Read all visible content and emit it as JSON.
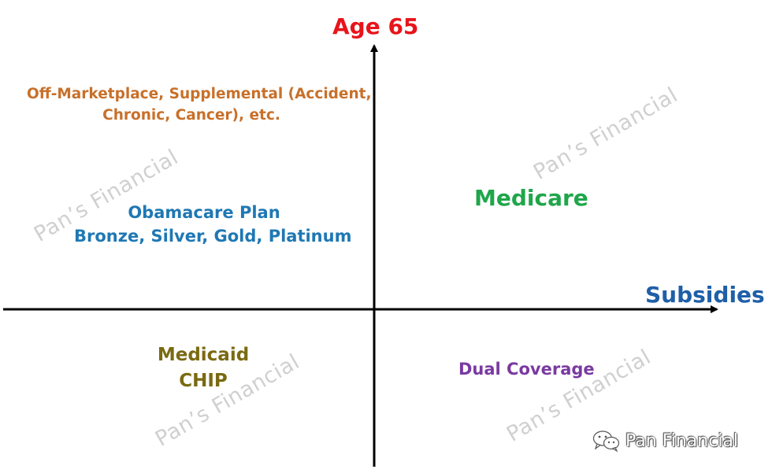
{
  "axes": {
    "y_label": "Age 65",
    "x_label": "Subsidies"
  },
  "quadrants": {
    "top_left_upper": {
      "line1": "Off-Marketplace, Supplemental (Accident,",
      "line2": "Chronic, Cancer), etc."
    },
    "top_left_lower": {
      "line1": "Obamacare Plan",
      "line2": "Bronze, Silver, Gold, Platinum"
    },
    "top_right": {
      "label": "Medicare"
    },
    "bottom_left": {
      "line1": "Medicaid",
      "line2": "CHIP"
    },
    "bottom_right": {
      "label": "Dual Coverage"
    }
  },
  "watermarks": [
    "Pan’s Financial",
    "Pan’s Financial",
    "Pan’s Financial",
    "Pan’s Financial"
  ],
  "brand": {
    "text": "Pan Financial",
    "icon": "wechat-icon"
  },
  "colors": {
    "axis": "#000000",
    "y_label": "#e8141b",
    "x_label": "#1f5fa8",
    "supplemental": "#c8702a",
    "obamacare": "#1f78b4",
    "medicare": "#1fa64a",
    "medicaid": "#7a6a12",
    "dual": "#7a3aa0",
    "watermark": "#aaaaaa"
  }
}
